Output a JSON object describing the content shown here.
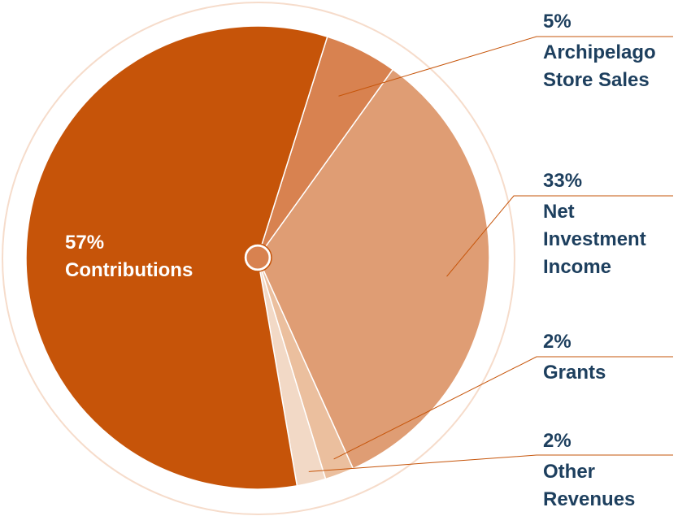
{
  "chart_data": {
    "type": "pie",
    "title": "",
    "slices": [
      {
        "label": "Archipelago Store Sales",
        "value": 5,
        "value_label": "5%",
        "label_lines": [
          "Archipelago",
          "Store Sales"
        ],
        "color": "#d88250"
      },
      {
        "label": "Net Investment Income",
        "value": 33,
        "value_label": "33%",
        "label_lines": [
          "Net",
          "Investment",
          "Income"
        ],
        "color": "#df9d74"
      },
      {
        "label": "Grants",
        "value": 2,
        "value_label": "2%",
        "label_lines": [
          "Grants"
        ],
        "color": "#ebbf9e"
      },
      {
        "label": "Other Revenues",
        "value": 2,
        "value_label": "2%",
        "label_lines": [
          "Other",
          "Revenues"
        ],
        "color": "#f2d9c6"
      },
      {
        "label": "Contributions",
        "value": 57,
        "value_label": "57%",
        "label_lines": [
          "Contributions"
        ],
        "color": "#c65409"
      }
    ]
  },
  "colors": {
    "label_text": "#1d3f5e",
    "leader_line": "#c65409",
    "outer_ring": "#f6dccb",
    "center_ring": "#c65409"
  }
}
